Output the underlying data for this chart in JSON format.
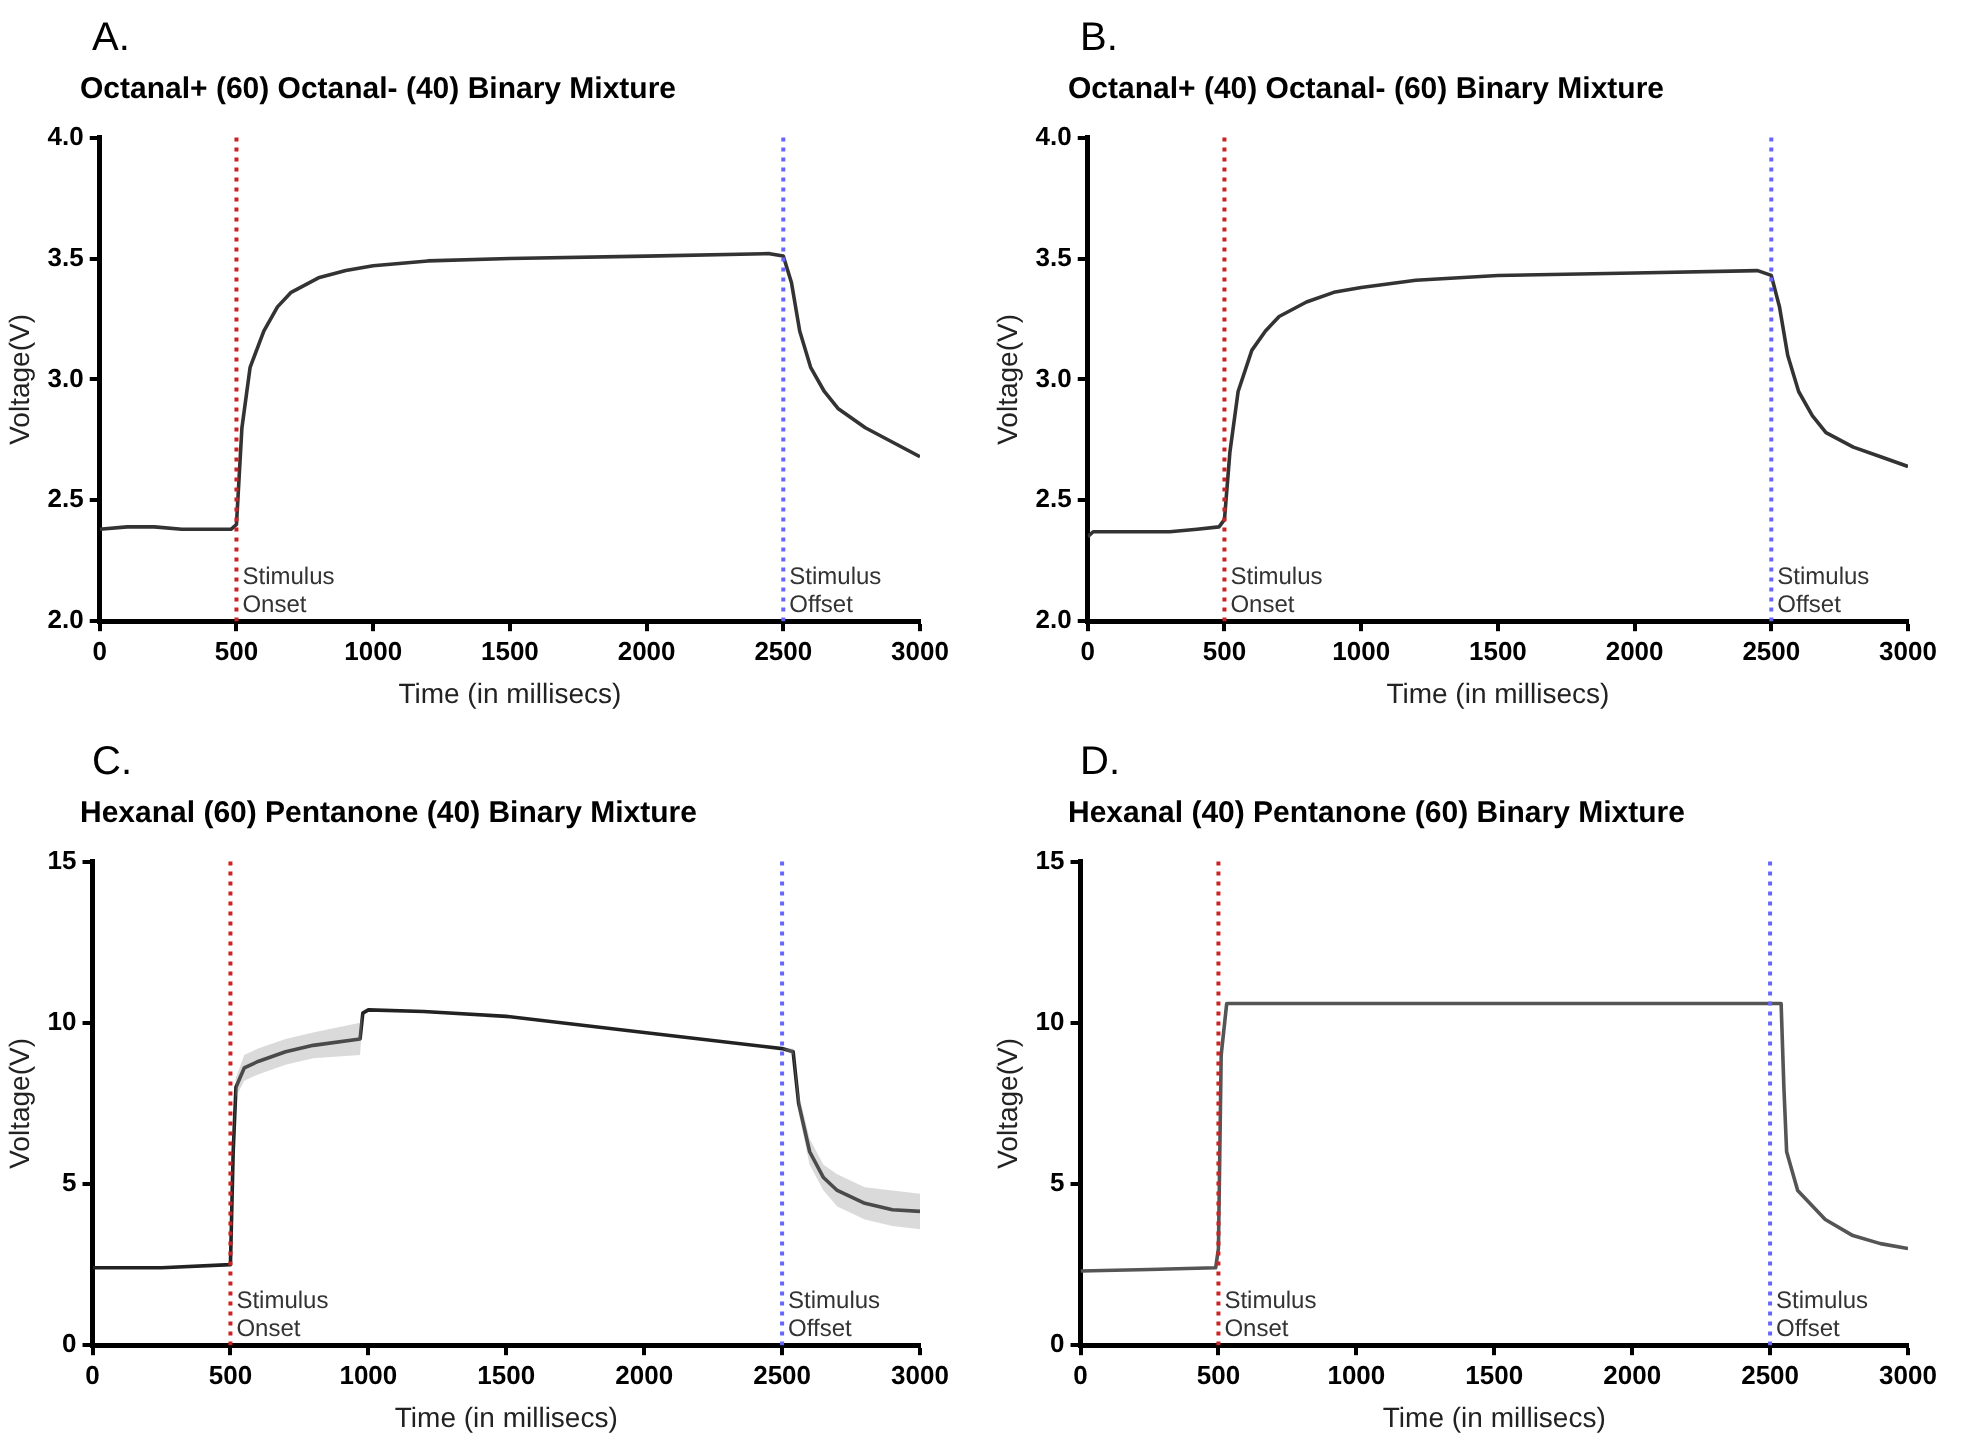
{
  "chart_data": [
    {
      "type": "line",
      "annotations": [
        "A."
      ],
      "title": "Octanal+ (60) Octanal- (40) Binary Mixture",
      "xlabel": "Time (in millisecs)",
      "ylabel": "Voltage(V)",
      "x": [
        0,
        100,
        200,
        300,
        400,
        480,
        500,
        520,
        550,
        600,
        650,
        700,
        800,
        900,
        1000,
        1200,
        1500,
        2000,
        2450,
        2500,
        2530,
        2560,
        2600,
        2650,
        2700,
        2800,
        2900,
        3000
      ],
      "series": [
        {
          "color": "#333333",
          "values": [
            2.38,
            2.39,
            2.39,
            2.38,
            2.38,
            2.38,
            2.4,
            2.8,
            3.05,
            3.2,
            3.3,
            3.36,
            3.42,
            3.45,
            3.47,
            3.49,
            3.5,
            3.51,
            3.52,
            3.51,
            3.4,
            3.2,
            3.05,
            2.95,
            2.88,
            2.8,
            2.74,
            2.68
          ]
        }
      ],
      "xlim": [
        0,
        3000
      ],
      "ylim": [
        2.0,
        4.0
      ],
      "xticks": [
        0,
        500,
        1000,
        1500,
        2000,
        2500,
        3000
      ],
      "yticks": [
        {
          "value": 2,
          "label": "2.0"
        },
        2.5,
        {
          "value": 3,
          "label": "3.0"
        },
        3.5,
        {
          "value": 4,
          "label": "4.0"
        }
      ],
      "grid": false,
      "ref_lines": [
        {
          "axis": "x",
          "value": 500,
          "label": "Stimulus Onset",
          "color": "#cc2222",
          "line_style": "dotted"
        },
        {
          "axis": "x",
          "value": 2500,
          "label": "Stimulus Offset",
          "color": "#6666ff",
          "line_style": "dotted"
        }
      ]
    },
    {
      "type": "line",
      "annotations": [
        "B."
      ],
      "title": "Octanal+ (40) Octanal- (60) Binary Mixture",
      "xlabel": "Time (in millisecs)",
      "ylabel": "Voltage(V)",
      "x": [
        0,
        20,
        100,
        200,
        300,
        400,
        480,
        500,
        520,
        550,
        600,
        650,
        700,
        800,
        900,
        1000,
        1200,
        1500,
        2000,
        2450,
        2500,
        2530,
        2560,
        2600,
        2650,
        2700,
        2800,
        2900,
        3000
      ],
      "series": [
        {
          "color": "#333333",
          "values": [
            2.35,
            2.37,
            2.37,
            2.37,
            2.37,
            2.38,
            2.39,
            2.42,
            2.7,
            2.95,
            3.12,
            3.2,
            3.26,
            3.32,
            3.36,
            3.38,
            3.41,
            3.43,
            3.44,
            3.45,
            3.43,
            3.3,
            3.1,
            2.95,
            2.85,
            2.78,
            2.72,
            2.68,
            2.64
          ]
        }
      ],
      "xlim": [
        0,
        3000
      ],
      "ylim": [
        2.0,
        4.0
      ],
      "xticks": [
        0,
        500,
        1000,
        1500,
        2000,
        2500,
        3000
      ],
      "yticks": [
        {
          "value": 2,
          "label": "2.0"
        },
        2.5,
        {
          "value": 3,
          "label": "3.0"
        },
        3.5,
        {
          "value": 4,
          "label": "4.0"
        }
      ],
      "grid": false,
      "ref_lines": [
        {
          "axis": "x",
          "value": 500,
          "label": "Stimulus Onset",
          "color": "#cc2222",
          "line_style": "dotted"
        },
        {
          "axis": "x",
          "value": 2500,
          "label": "Stimulus Offset",
          "color": "#6666ff",
          "line_style": "dotted"
        }
      ]
    },
    {
      "type": "line",
      "annotations": [
        "C."
      ],
      "title": "Hexanal (60) Pentanone (40) Binary Mixture",
      "xlabel": "Time (in millisecs)",
      "ylabel": "Voltage(V)",
      "x": [
        0,
        250,
        500,
        510,
        520,
        550,
        600,
        700,
        800,
        970,
        980,
        1000,
        1200,
        1500,
        2000,
        2500,
        2540,
        2560,
        2600,
        2650,
        2700,
        2800,
        2900,
        3000
      ],
      "series": [
        {
          "color": "#222222",
          "values": [
            2.4,
            2.4,
            2.5,
            6,
            8,
            8.6,
            8.8,
            9.1,
            9.3,
            9.5,
            10.3,
            10.4,
            10.35,
            10.2,
            9.7,
            9.2,
            9.1,
            7.5,
            6,
            5.2,
            4.8,
            4.4,
            4.2,
            4.15
          ],
          "lower": [
            2.4,
            2.4,
            2.5,
            5.8,
            7.7,
            8.2,
            8.4,
            8.7,
            8.9,
            9.0,
            10.3,
            10.4,
            10.35,
            10.2,
            9.7,
            9.2,
            9.0,
            7.2,
            5.6,
            4.8,
            4.3,
            3.9,
            3.7,
            3.6
          ],
          "upper": [
            2.4,
            2.4,
            2.5,
            6.2,
            8.3,
            9.0,
            9.2,
            9.5,
            9.7,
            10.0,
            10.3,
            10.4,
            10.35,
            10.2,
            9.7,
            9.2,
            9.2,
            7.8,
            6.4,
            5.6,
            5.3,
            4.9,
            4.8,
            4.7
          ]
        }
      ],
      "xlim": [
        0,
        3000
      ],
      "ylim": [
        0,
        15
      ],
      "xticks": [
        0,
        500,
        1000,
        1500,
        2000,
        2500,
        3000
      ],
      "yticks": [
        0,
        5,
        10,
        15
      ],
      "grid": false,
      "ref_lines": [
        {
          "axis": "x",
          "value": 500,
          "label": "Stimulus Onset",
          "color": "#cc2222",
          "line_style": "dotted"
        },
        {
          "axis": "x",
          "value": 2500,
          "label": "Stimulus Offset",
          "color": "#6666ff",
          "line_style": "dotted"
        }
      ]
    },
    {
      "type": "line",
      "annotations": [
        "D."
      ],
      "title": "Hexanal (40) Pentanone (60) Binary Mixture",
      "xlabel": "Time (in millisecs)",
      "ylabel": "Voltage(V)",
      "x": [
        0,
        250,
        490,
        500,
        510,
        530,
        1500,
        2500,
        2540,
        2550,
        2560,
        2600,
        2700,
        2800,
        2900,
        3000
      ],
      "series": [
        {
          "color": "#555555",
          "values": [
            2.3,
            2.35,
            2.4,
            3,
            9,
            10.6,
            10.6,
            10.6,
            10.6,
            8,
            6,
            4.8,
            3.9,
            3.4,
            3.15,
            3.0
          ]
        }
      ],
      "xlim": [
        0,
        3000
      ],
      "ylim": [
        0,
        15
      ],
      "xticks": [
        0,
        500,
        1000,
        1500,
        2000,
        2500,
        3000
      ],
      "yticks": [
        0,
        5,
        10,
        15
      ],
      "grid": false,
      "ref_lines": [
        {
          "axis": "x",
          "value": 500,
          "label": "Stimulus Onset",
          "color": "#cc2222",
          "line_style": "dotted"
        },
        {
          "axis": "x",
          "value": 2500,
          "label": "Stimulus Offset",
          "color": "#6666ff",
          "line_style": "dotted"
        }
      ]
    }
  ]
}
